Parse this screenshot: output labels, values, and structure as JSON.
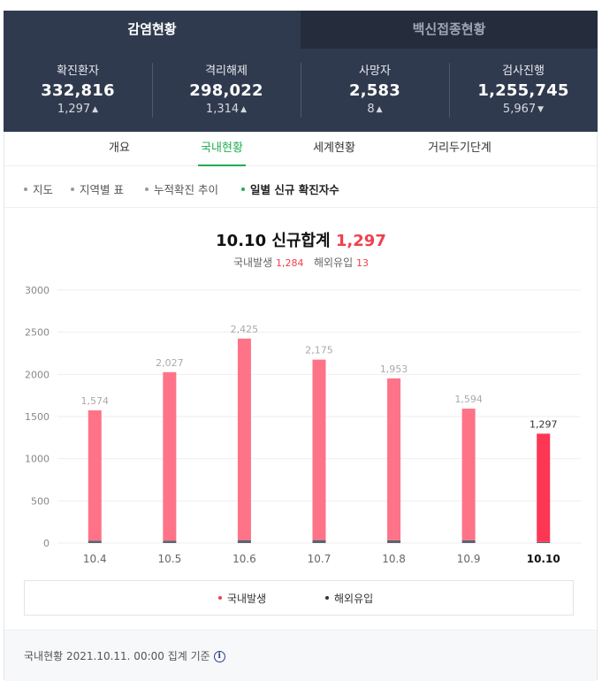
{
  "main_tabs": [
    {
      "label": "감염현황",
      "active": true
    },
    {
      "label": "백신접종현황",
      "active": false
    }
  ],
  "stats": [
    {
      "label": "확진환자",
      "value": "332,816",
      "delta": "1,297",
      "direction": "up",
      "direction_icon": "triangle-up-icon"
    },
    {
      "label": "격리해제",
      "value": "298,022",
      "delta": "1,314",
      "direction": "up",
      "direction_icon": "triangle-up-icon"
    },
    {
      "label": "사망자",
      "value": "2,583",
      "delta": "8",
      "direction": "up",
      "direction_icon": "triangle-up-icon"
    },
    {
      "label": "검사진행",
      "value": "1,255,745",
      "delta": "5,967",
      "direction": "down",
      "direction_icon": "triangle-down-icon"
    }
  ],
  "sub_tabs": [
    {
      "label": "개요",
      "active": false
    },
    {
      "label": "국내현황",
      "active": true
    },
    {
      "label": "세계현황",
      "active": false
    },
    {
      "label": "거리두기단계",
      "active": false
    }
  ],
  "filters": [
    {
      "label": "지도",
      "active": false
    },
    {
      "label": "지역별 표",
      "active": false
    },
    {
      "label": "누적확진 추이",
      "active": false
    },
    {
      "label": "일별 신규 확진자수",
      "active": true
    }
  ],
  "summary": {
    "date": "10.10",
    "title": "신규합계",
    "total": "1,297",
    "domestic_label": "국내발생",
    "domestic_value": "1,284",
    "overseas_label": "해외유입",
    "overseas_value": "13"
  },
  "chart_data": {
    "type": "bar",
    "categories": [
      "10.4",
      "10.5",
      "10.6",
      "10.7",
      "10.8",
      "10.9",
      "10.10"
    ],
    "series": [
      {
        "name": "국내발생",
        "values": [
          1546,
          1998,
          2390,
          2140,
          1920,
          1560,
          1284
        ]
      },
      {
        "name": "해외유입",
        "values": [
          28,
          29,
          35,
          35,
          33,
          34,
          13
        ]
      }
    ],
    "total_labels": [
      "1,574",
      "2,027",
      "2,425",
      "2,175",
      "1,953",
      "1,594",
      "1,297"
    ],
    "yticks": [
      0,
      500,
      1000,
      1500,
      2000,
      2500,
      3000
    ],
    "ylim": [
      0,
      3000
    ],
    "highlight_index": 6,
    "colors": {
      "domestic": "#fe7387",
      "domestic_highlight": "#fd3654",
      "overseas": "#5c6370",
      "grid": "#eeeeee"
    },
    "grid": true,
    "legend_position": "bottom"
  },
  "legend": [
    {
      "label": "국내발생",
      "color": "#f0414e"
    },
    {
      "label": "해외유입",
      "color": "#333333"
    }
  ],
  "footer": {
    "text": "국내현황 2021.10.11. 00:00 집계 기준",
    "info_glyph": "i"
  }
}
